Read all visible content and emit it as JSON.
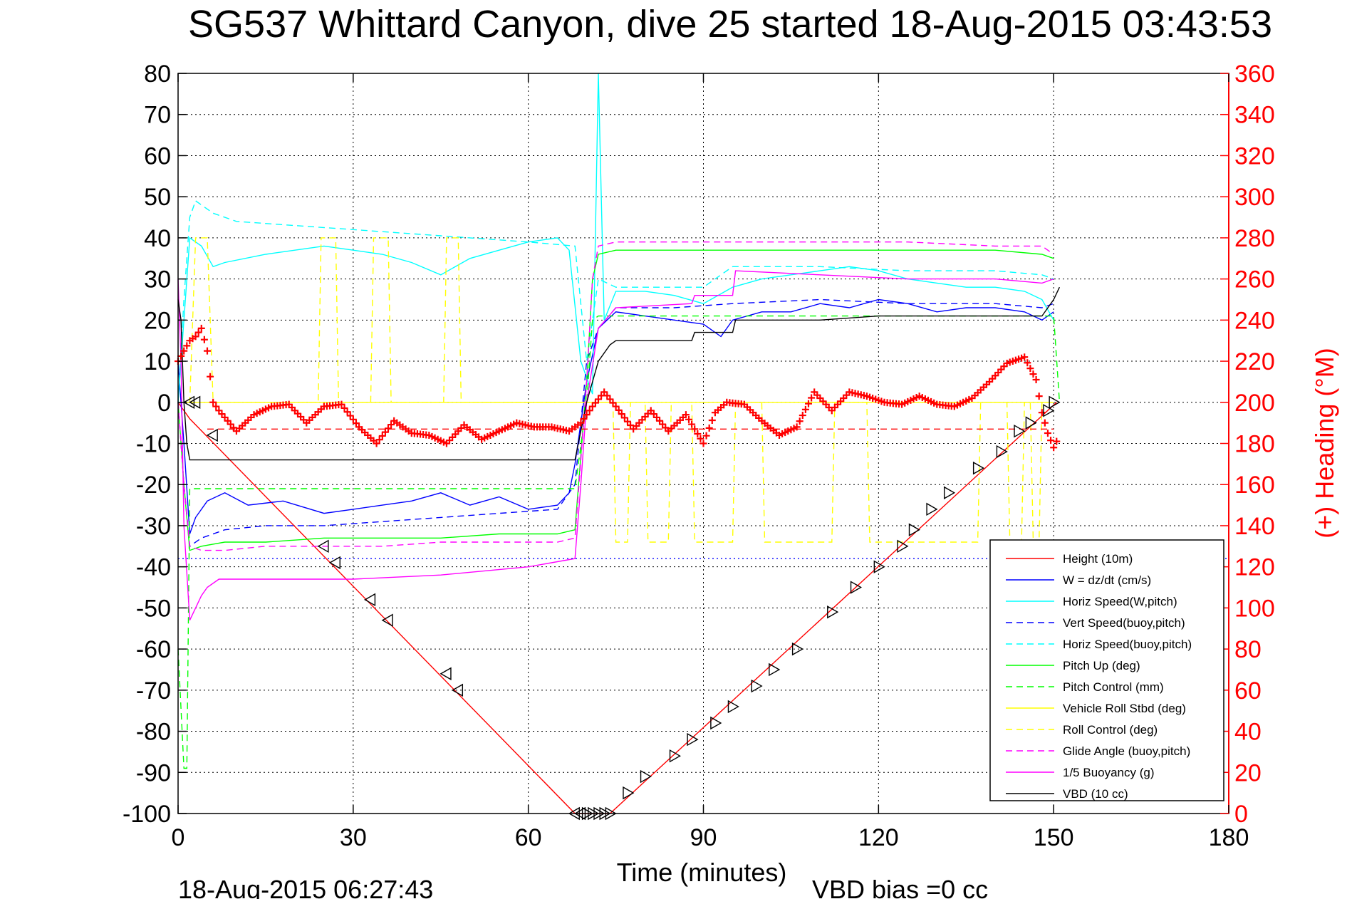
{
  "chart_data": {
    "type": "line",
    "title": "SG537 Whittard Canyon, dive 25 started 18-Aug-2015 03:43:53",
    "xlabel": "Time (minutes)",
    "ylabel_right": "(+) Heading (°M)",
    "xlim": [
      0,
      180
    ],
    "ylim_left": [
      -100,
      80
    ],
    "ylim_right": [
      0,
      360
    ],
    "xticks": [
      0,
      30,
      60,
      90,
      120,
      150,
      180
    ],
    "yticks_left": [
      80,
      70,
      60,
      50,
      40,
      30,
      20,
      10,
      0,
      -10,
      -20,
      -30,
      -40,
      -50,
      -60,
      -70,
      -80,
      -90,
      -100
    ],
    "yticks_right": [
      360,
      340,
      320,
      300,
      280,
      260,
      240,
      220,
      200,
      180,
      160,
      140,
      120,
      100,
      80,
      60,
      40,
      20,
      0
    ],
    "grid": true,
    "legend_position": "bottom-right",
    "footer_left": "18-Aug-2015 06:27:43",
    "footer_right": "VBD bias =0 cc",
    "colors": {
      "red": "#ff0000",
      "blue": "#0000ff",
      "cyan": "#00ffff",
      "green": "#00ff00",
      "yellow": "#ffff00",
      "magenta": "#ff00ff",
      "black": "#000000"
    },
    "series": [
      {
        "name": "Height (10m)",
        "color": "#ff0000",
        "dash": "solid",
        "x": [
          0,
          2,
          68,
          69,
          74,
          150.5
        ],
        "y": [
          0,
          -4,
          -100,
          -100,
          -100,
          0
        ]
      },
      {
        "name": "W = dz/dt (cm/s)",
        "color": "#0000ff",
        "dash": "solid",
        "x": [
          0,
          1,
          2,
          3,
          5,
          8,
          12,
          18,
          25,
          30,
          35,
          40,
          45,
          50,
          55,
          60,
          65,
          67,
          68,
          70,
          72,
          75,
          80,
          85,
          90,
          93,
          95,
          100,
          105,
          110,
          115,
          120,
          125,
          130,
          135,
          140,
          145,
          148,
          150
        ],
        "y": [
          10,
          -10,
          -32,
          -28,
          -24,
          -22,
          -25,
          -24,
          -27,
          -26,
          -25,
          -24,
          -22,
          -25,
          -23,
          -26,
          -25,
          -22,
          -15,
          5,
          18,
          22,
          21,
          20,
          19,
          16,
          20,
          22,
          22,
          24,
          23,
          25,
          24,
          22,
          23,
          23,
          22,
          20,
          22
        ]
      },
      {
        "name": "Horiz Speed(W,pitch)",
        "color": "#00ffff",
        "dash": "solid",
        "x": [
          0,
          1,
          2,
          4,
          6,
          8,
          15,
          20,
          25,
          30,
          35,
          40,
          45,
          50,
          55,
          60,
          65,
          67,
          69,
          71,
          72,
          73,
          75,
          80,
          85,
          90,
          95,
          100,
          105,
          110,
          115,
          120,
          125,
          130,
          135,
          140,
          145,
          148,
          150
        ],
        "y": [
          0,
          20,
          40,
          38,
          33,
          34,
          36,
          37,
          38,
          37,
          36,
          34,
          31,
          35,
          37,
          39,
          40,
          37,
          10,
          2,
          80,
          20,
          27,
          27,
          26,
          24,
          28,
          30,
          31,
          32,
          33,
          32,
          30,
          29,
          28,
          28,
          27,
          25,
          20
        ]
      },
      {
        "name": "Vert Speed(buoy,pitch)",
        "color": "#0000ff",
        "dash": "dashed",
        "x": [
          0,
          1,
          2,
          4,
          8,
          15,
          25,
          35,
          45,
          55,
          65,
          68,
          70,
          72,
          75,
          85,
          95,
          110,
          125,
          140,
          148,
          150
        ],
        "y": [
          0,
          -20,
          -35,
          -33,
          -31,
          -30,
          -30,
          -29,
          -28,
          -27,
          -26,
          -20,
          10,
          18,
          23,
          23,
          24,
          25,
          24,
          24,
          23,
          24
        ]
      },
      {
        "name": "Horiz Speed(buoy,pitch)",
        "color": "#00ffff",
        "dash": "dashed",
        "x": [
          0,
          1,
          2,
          3,
          6,
          10,
          20,
          30,
          40,
          50,
          60,
          68,
          70,
          72,
          75,
          90,
          95,
          110,
          125,
          140,
          148,
          150
        ],
        "y": [
          0,
          25,
          45,
          49,
          46,
          44,
          43,
          42,
          41,
          40,
          39,
          38,
          10,
          30,
          28,
          28,
          33,
          33,
          32,
          32,
          31,
          30
        ]
      },
      {
        "name": "Pitch Up (deg)",
        "color": "#00ff00",
        "dash": "solid",
        "x": [
          0,
          1,
          2,
          4,
          8,
          15,
          25,
          35,
          45,
          55,
          65,
          68,
          70,
          71,
          72,
          75,
          85,
          95,
          110,
          125,
          140,
          148,
          150
        ],
        "y": [
          0,
          -20,
          -36,
          -35,
          -34,
          -34,
          -33,
          -33,
          -33,
          -32,
          -32,
          -31,
          5,
          30,
          36,
          37,
          37,
          37,
          37,
          37,
          37,
          36,
          35
        ]
      },
      {
        "name": "Pitch Control (mm)",
        "color": "#00ff00",
        "dash": "dashed",
        "x": [
          0,
          1,
          1.5,
          2,
          3,
          10,
          20,
          40,
          60,
          68,
          70,
          71,
          72,
          75,
          90,
          95,
          110,
          130,
          150,
          151
        ],
        "y": [
          -60,
          -89,
          -89,
          -21,
          -21,
          -21,
          -21,
          -21,
          -21,
          -21,
          0,
          20,
          21,
          21,
          21,
          21,
          21,
          21,
          21,
          0
        ]
      },
      {
        "name": "Vehicle Roll Stbd (deg)",
        "color": "#ffff00",
        "dash": "solid",
        "x": [
          0,
          10,
          20,
          30,
          40,
          50,
          60,
          68,
          75,
          90,
          105,
          120,
          135,
          150
        ],
        "y": [
          0,
          0,
          0,
          0,
          0,
          0,
          0,
          0,
          0,
          0,
          0,
          0,
          0,
          0
        ]
      },
      {
        "name": "Roll Control (deg)",
        "color": "#ffff00",
        "dash": "dashed",
        "x": [
          0,
          2,
          3,
          5,
          6,
          24,
          24.5,
          27,
          27.5,
          33,
          33.5,
          36,
          36.5,
          45.5,
          46,
          48,
          48.5,
          60,
          68,
          74.5,
          75,
          77,
          77.5,
          80,
          80.5,
          84,
          84.5,
          88,
          88.5,
          95,
          95.5,
          100,
          100.5,
          112,
          112.5,
          118,
          118.5,
          137,
          137.5,
          142,
          142.5,
          144.5,
          145,
          146,
          146.5,
          147.5,
          148,
          150.5
        ],
        "y": [
          0,
          0,
          40,
          40,
          0,
          0,
          40,
          40,
          0,
          0,
          40,
          40,
          0,
          0,
          40,
          40,
          0,
          0,
          0,
          0,
          -34,
          -34,
          0,
          0,
          -34,
          -34,
          0,
          0,
          -34,
          -34,
          0,
          0,
          -34,
          -34,
          0,
          0,
          -34,
          -34,
          0,
          0,
          -34,
          -34,
          0,
          0,
          -34,
          -34,
          0,
          0
        ]
      },
      {
        "name": "Glide Angle (buoy,pitch)",
        "color": "#ff00ff",
        "dash": "dashed",
        "x": [
          0,
          1,
          2,
          4,
          8,
          15,
          25,
          35,
          45,
          55,
          65,
          68,
          70,
          71,
          72,
          75,
          85,
          95,
          110,
          125,
          140,
          148,
          150
        ],
        "y": [
          0,
          -20,
          -35,
          -36,
          -36,
          -35,
          -35,
          -35,
          -34,
          -34,
          -34,
          -33,
          5,
          30,
          38,
          39,
          39,
          39,
          39,
          39,
          38,
          38,
          36
        ]
      },
      {
        "name": "1/5 Buoyancy (g)",
        "color": "#ff00ff",
        "dash": "solid",
        "x": [
          0,
          0.5,
          1,
          2,
          3,
          4,
          5,
          7,
          10,
          15,
          30,
          45,
          60,
          68,
          69,
          70,
          72,
          75,
          88,
          88.5,
          95,
          95.5,
          110,
          125,
          140,
          148,
          150
        ],
        "y": [
          30,
          10,
          -30,
          -53,
          -50,
          -47,
          -45,
          -43,
          -43,
          -43,
          -43,
          -42,
          -40,
          -38,
          -20,
          0,
          18,
          23,
          24,
          26,
          26,
          32,
          31,
          30,
          30,
          29,
          30
        ]
      },
      {
        "name": "VBD (10 cc)",
        "color": "#000000",
        "dash": "solid",
        "x": [
          0,
          0.5,
          1,
          1.5,
          2,
          68,
          70,
          72,
          74,
          75,
          80,
          88,
          88.5,
          95,
          95.5,
          110,
          120,
          130,
          140,
          148,
          150,
          151
        ],
        "y": [
          25,
          20,
          0,
          -10,
          -14,
          -14,
          0,
          10,
          14,
          15,
          15,
          15,
          17,
          17,
          20,
          20,
          21,
          21,
          21,
          21,
          25,
          28
        ]
      },
      {
        "name": "Blue dotted ref",
        "color": "#0000ff",
        "dash": "dotted",
        "show_in_legend": false,
        "x": [
          0,
          180
        ],
        "y": [
          -38,
          -38
        ]
      },
      {
        "name": "Heading mean",
        "color": "#ff0000",
        "dash": "dashed",
        "axis": "right",
        "show_in_legend": false,
        "x": [
          5,
          150
        ],
        "y": [
          187,
          187
        ]
      }
    ],
    "heading": {
      "axis": "right",
      "marker": "+",
      "color": "#ff0000",
      "x": [
        0,
        1,
        2,
        3,
        4,
        5,
        6,
        7,
        10,
        13,
        16,
        19,
        22,
        25,
        28,
        31,
        34,
        37,
        40,
        43,
        46,
        49,
        52,
        55,
        58,
        61,
        64,
        67,
        69,
        71,
        73,
        75,
        78,
        81,
        84,
        87,
        90,
        92,
        94,
        97,
        100,
        103,
        106,
        109,
        112,
        115,
        118,
        121,
        124,
        127,
        130,
        133,
        136,
        139,
        142,
        145,
        147,
        148,
        149,
        150,
        151
      ],
      "y": [
        220,
        225,
        230,
        232,
        236,
        225,
        200,
        196,
        186,
        194,
        198,
        199,
        190,
        198,
        199,
        188,
        180,
        191,
        185,
        184,
        180,
        189,
        182,
        186,
        190,
        188,
        188,
        186,
        190,
        198,
        205,
        198,
        187,
        196,
        186,
        194,
        180,
        195,
        200,
        199,
        191,
        184,
        188,
        205,
        196,
        205,
        203,
        200,
        199,
        203,
        199,
        198,
        202,
        210,
        219,
        222,
        211,
        195,
        185,
        178,
        184
      ]
    },
    "markers": {
      "color": "#000000",
      "shape": "triangle",
      "x": [
        2,
        3,
        6,
        25,
        27,
        33,
        36,
        46,
        48,
        68,
        69,
        70,
        71,
        72,
        73,
        74,
        77,
        80,
        85,
        88,
        92,
        95,
        99,
        102,
        106,
        112,
        116,
        120,
        124,
        126,
        129,
        132,
        137,
        141,
        144,
        146,
        149,
        150
      ],
      "y": [
        0,
        0,
        -8,
        -35,
        -39,
        -48,
        -53,
        -66,
        -70,
        -100,
        -100,
        -100,
        -100,
        -100,
        -100,
        -100,
        -95,
        -91,
        -86,
        -82,
        -78,
        -74,
        -69,
        -65,
        -60,
        -51,
        -45,
        -40,
        -35,
        -31,
        -26,
        -22,
        -16,
        -12,
        -7,
        -5,
        -2,
        0
      ]
    }
  }
}
